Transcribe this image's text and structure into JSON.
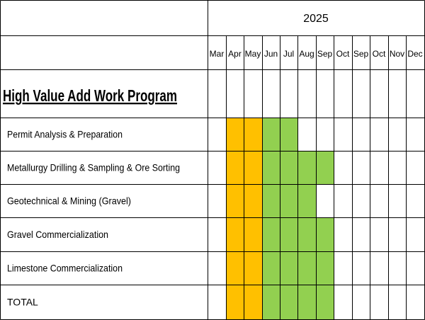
{
  "chart_data": {
    "type": "table",
    "title": "High Value Add Work Program",
    "year": "2025",
    "months": [
      "Mar",
      "Apr",
      "May",
      "Jun",
      "Jul",
      "Aug",
      "Sep",
      "Oct",
      "Sep",
      "Oct",
      "Nov",
      "Dec"
    ],
    "tasks": [
      {
        "name": "Permit Analysis & Preparation",
        "cells": [
          "",
          "orange",
          "orange",
          "green",
          "green",
          "",
          "",
          "",
          "",
          "",
          "",
          ""
        ]
      },
      {
        "name": "Metallurgy Drilling & Sampling & Ore Sorting",
        "cells": [
          "",
          "orange",
          "orange",
          "green",
          "green",
          "green",
          "green",
          "",
          "",
          "",
          "",
          ""
        ]
      },
      {
        "name": "Geotechnical & Mining (Gravel)",
        "cells": [
          "",
          "orange",
          "orange",
          "green",
          "green",
          "green",
          "",
          "",
          "",
          "",
          "",
          ""
        ]
      },
      {
        "name": "Gravel Commercialization",
        "cells": [
          "",
          "orange",
          "orange",
          "green",
          "green",
          "green",
          "green",
          "",
          "",
          "",
          "",
          ""
        ]
      },
      {
        "name": "Limestone Commercialization",
        "cells": [
          "",
          "orange",
          "orange",
          "green",
          "green",
          "green",
          "green",
          "",
          "",
          "",
          "",
          ""
        ]
      },
      {
        "name": "TOTAL",
        "cells": [
          "",
          "orange",
          "orange",
          "green",
          "green",
          "green",
          "green",
          "",
          "",
          "",
          "",
          ""
        ]
      }
    ],
    "colors": {
      "orange": "#FFC000",
      "green": "#92D050",
      "grid": "#000000"
    }
  }
}
